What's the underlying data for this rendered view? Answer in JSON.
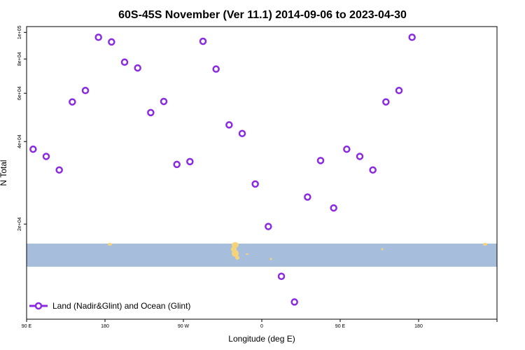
{
  "colors": {
    "marker": "#8a2be2",
    "band": "#a7bddc",
    "land": "#f5d37a",
    "axis": "#000000"
  },
  "chart_data": {
    "type": "scatter",
    "title": "60S-45S November (Ver 11.1)   2014-09-06 to 2023-04-30",
    "xlabel": "Longitude (deg E)",
    "ylabel": "N Total",
    "yscale": "log",
    "xlim": [
      -90,
      180
    ],
    "ylim": [
      9000,
      105000
    ],
    "xticks": [
      {
        "value": -90,
        "label": "90 E"
      },
      {
        "value": -45,
        "label": "180"
      },
      {
        "value": 0,
        "label": "90 W"
      },
      {
        "value": 45,
        "label": "0"
      },
      {
        "value": 90,
        "label": "90 E"
      },
      {
        "value": 135,
        "label": "180"
      }
    ],
    "yticks": [
      {
        "value": 20000,
        "label": "2e+04"
      },
      {
        "value": 40000,
        "label": "4e+04"
      },
      {
        "value": 60000,
        "label": "6e+04"
      },
      {
        "value": 80000,
        "label": "8e+04"
      },
      {
        "value": 100000,
        "label": "1e+05"
      }
    ],
    "series": [
      {
        "name": "Land (Nadir&Glint) and Ocean (Glint)",
        "marker": "open-circle",
        "x": [
          -86.25,
          -78.75,
          -71.25,
          -63.75,
          -56.25,
          -48.75,
          -41.25,
          -33.75,
          -26.25,
          -18.75,
          -11.25,
          -3.75,
          3.75,
          11.25,
          18.75,
          26.25,
          33.75,
          41.25,
          48.75,
          56.25,
          63.75,
          71.25,
          78.75,
          86.25,
          93.75,
          101.25,
          108.75,
          116.25,
          123.75,
          131.25
        ],
        "y": [
          37500,
          35300,
          31500,
          55800,
          61400,
          96000,
          92300,
          77900,
          74200,
          51000,
          56000,
          33000,
          33800,
          92800,
          73500,
          46000,
          42800,
          28000,
          19600,
          12900,
          10400,
          25100,
          34100,
          22900,
          37500,
          35300,
          31500,
          55800,
          61400,
          96000
        ]
      }
    ],
    "legend": "bottom-left",
    "grid": false
  }
}
